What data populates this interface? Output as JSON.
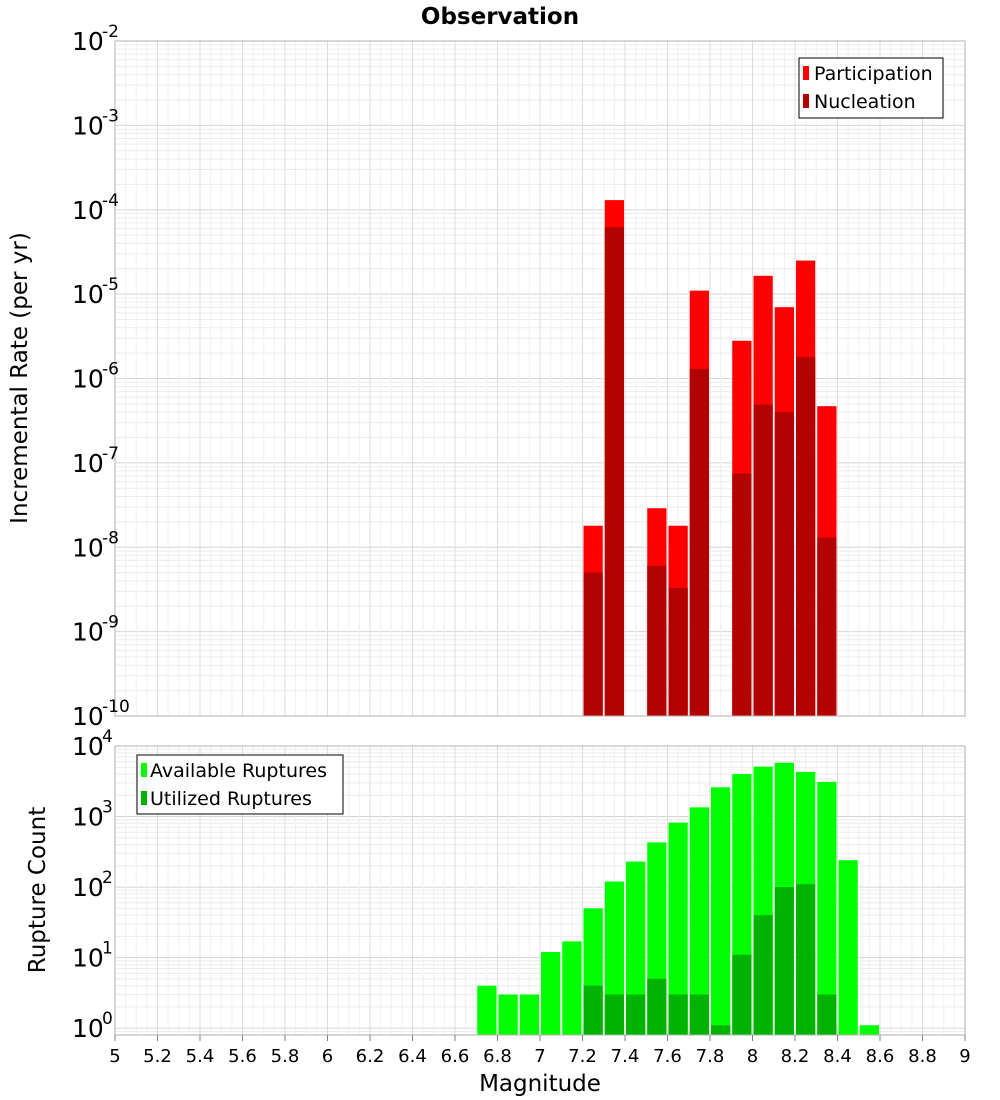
{
  "chart_data": [
    {
      "type": "bar",
      "title": "Observation",
      "xlabel": "",
      "ylabel": "Incremental Rate (per yr)",
      "yscale": "log",
      "ylim": [
        1e-10,
        0.01
      ],
      "xlim": [
        5,
        9
      ],
      "bar_width": 0.1,
      "ytick_exponents": [
        "-10",
        "-9",
        "-8",
        "-7",
        "-6",
        "-5",
        "-4",
        "-3",
        "-2"
      ],
      "ytick_base": "10",
      "legend": {
        "placement": "top-right",
        "entries": [
          {
            "name": "Participation",
            "color": "#ff0000"
          },
          {
            "name": "Nucleation",
            "color": "#b30000"
          }
        ]
      },
      "grid": true,
      "series": [
        {
          "name": "Participation",
          "color": "#ff0000",
          "x": [
            7.25,
            7.35,
            7.55,
            7.65,
            7.75,
            7.95,
            8.05,
            8.15,
            8.25,
            8.35
          ],
          "values": [
            1.8e-08,
            0.00013,
            2.9e-08,
            1.8e-08,
            1.1e-05,
            2.8e-06,
            1.65e-05,
            7e-06,
            2.5e-05,
            4.7e-07
          ]
        },
        {
          "name": "Nucleation",
          "color": "#b30000",
          "x": [
            7.25,
            7.35,
            7.55,
            7.65,
            7.75,
            7.95,
            8.05,
            8.15,
            8.25,
            8.35
          ],
          "values": [
            5e-09,
            6.2e-05,
            6e-09,
            3.3e-09,
            1.3e-06,
            7.5e-08,
            4.9e-07,
            4e-07,
            1.8e-06,
            1.3e-08
          ]
        }
      ]
    },
    {
      "type": "bar",
      "title": "",
      "xlabel": "Magnitude",
      "ylabel": "Rupture Count",
      "yscale": "log",
      "ylim": [
        0.8,
        10000
      ],
      "xlim": [
        5,
        9
      ],
      "bar_width": 0.1,
      "ytick_exponents": [
        "0",
        "1",
        "2",
        "3",
        "4"
      ],
      "ytick_base": "10",
      "xticks": [
        "5",
        "5.2",
        "5.4",
        "5.6",
        "5.8",
        "6",
        "6.2",
        "6.4",
        "6.6",
        "6.8",
        "7",
        "7.2",
        "7.4",
        "7.6",
        "7.8",
        "8",
        "8.2",
        "8.4",
        "8.6",
        "8.8",
        "9"
      ],
      "legend": {
        "placement": "top-left",
        "entries": [
          {
            "name": "Available Ruptures",
            "color": "#00ff00"
          },
          {
            "name": "Utilized Ruptures",
            "color": "#00b300"
          }
        ]
      },
      "grid": true,
      "series": [
        {
          "name": "Available Ruptures",
          "color": "#00ff00",
          "x": [
            6.75,
            6.85,
            6.95,
            7.05,
            7.15,
            7.25,
            7.35,
            7.45,
            7.55,
            7.65,
            7.75,
            7.85,
            7.95,
            8.05,
            8.15,
            8.25,
            8.35,
            8.45,
            8.55
          ],
          "values": [
            4,
            3,
            3,
            12,
            17,
            50,
            120,
            230,
            430,
            820,
            1350,
            2600,
            4000,
            5100,
            5800,
            4300,
            3100,
            240,
            1.1
          ]
        },
        {
          "name": "Utilized Ruptures",
          "color": "#00b300",
          "x": [
            7.25,
            7.35,
            7.45,
            7.55,
            7.65,
            7.75,
            7.85,
            7.95,
            8.05,
            8.15,
            8.25,
            8.35
          ],
          "values": [
            4,
            3,
            3,
            5,
            3,
            3,
            1.1,
            11,
            40,
            100,
            110,
            3
          ]
        }
      ]
    }
  ]
}
